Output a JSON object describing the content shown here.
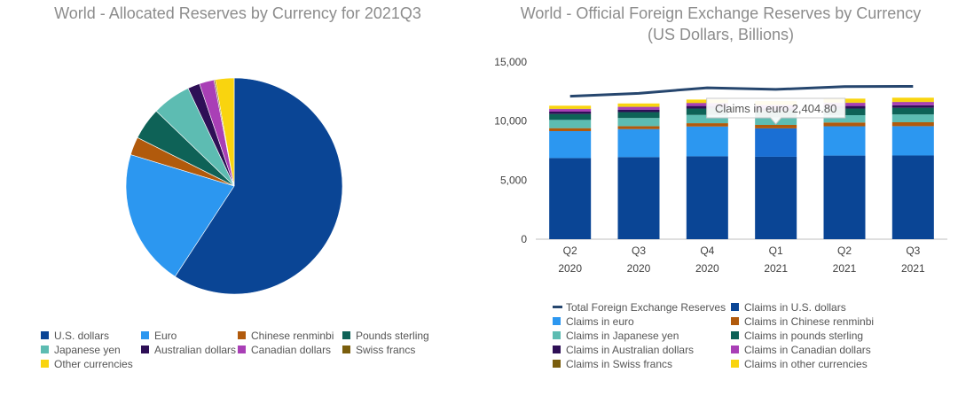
{
  "pie_title": "World - Allocated Reserves by Currency for 2021Q3",
  "bar_title_line1": "World - Official Foreign Exchange Reserves by Currency",
  "bar_title_line2": "(US Dollars, Billions)",
  "colors": {
    "usd": "#0a4595",
    "eur": "#2c97f0",
    "cny": "#b15a0c",
    "gbp": "#0e6257",
    "jpy": "#5dbcb2",
    "aud": "#2e0f56",
    "cad": "#a93fb6",
    "chf": "#7a5e0d",
    "other": "#f9d40f",
    "total": "#26466e"
  },
  "chart_data": [
    {
      "type": "pie",
      "title": "World - Allocated Reserves by Currency for 2021Q3",
      "legend_position": "bottom",
      "slices": [
        {
          "key": "usd",
          "label": "U.S. dollars",
          "value": 59.2
        },
        {
          "key": "eur",
          "label": "Euro",
          "value": 20.5
        },
        {
          "key": "cny",
          "label": "Chinese renminbi",
          "value": 2.7
        },
        {
          "key": "gbp",
          "label": "Pounds sterling",
          "value": 4.8
        },
        {
          "key": "jpy",
          "label": "Japanese yen",
          "value": 5.8
        },
        {
          "key": "aud",
          "label": "Australian dollars",
          "value": 1.8
        },
        {
          "key": "cad",
          "label": "Canadian dollars",
          "value": 2.2
        },
        {
          "key": "chf",
          "label": "Swiss francs",
          "value": 0.2
        },
        {
          "key": "other",
          "label": "Other currencies",
          "value": 2.8
        }
      ]
    },
    {
      "type": "bar",
      "stacked": true,
      "title": "World - Official Foreign Exchange Reserves by Currency",
      "subtitle": "(US Dollars, Billions)",
      "categories": [
        [
          "Q2",
          "2020"
        ],
        [
          "Q3",
          "2020"
        ],
        [
          "Q4",
          "2020"
        ],
        [
          "Q1",
          "2021"
        ],
        [
          "Q2",
          "2021"
        ],
        [
          "Q3",
          "2021"
        ]
      ],
      "ylim": [
        0,
        15000
      ],
      "yticks": [
        {
          "value": 0,
          "label": "0"
        },
        {
          "value": 5000,
          "label": "5,000"
        },
        {
          "value": 10000,
          "label": "10,000"
        },
        {
          "value": 15000,
          "label": "15,000"
        }
      ],
      "series": [
        {
          "key": "usd",
          "name": "Claims in U.S. dollars",
          "values": [
            6870,
            6950,
            7020,
            6980,
            7080,
            7090
          ]
        },
        {
          "key": "eur",
          "name": "Claims in euro",
          "values": [
            2280,
            2370,
            2520,
            2404.8,
            2480,
            2480
          ]
        },
        {
          "key": "cny",
          "name": "Claims in Chinese renminbi",
          "values": [
            250,
            250,
            280,
            290,
            320,
            330
          ]
        },
        {
          "key": "jpy",
          "name": "Claims in Japanese yen",
          "values": [
            700,
            690,
            700,
            630,
            620,
            660
          ]
        },
        {
          "key": "gbp",
          "name": "Claims in pounds sterling",
          "values": [
            500,
            500,
            540,
            560,
            560,
            560
          ]
        },
        {
          "key": "aud",
          "name": "Claims in Australian dollars",
          "values": [
            200,
            210,
            220,
            220,
            220,
            220
          ]
        },
        {
          "key": "cad",
          "name": "Claims in Canadian dollars",
          "values": [
            220,
            230,
            240,
            270,
            260,
            270
          ]
        },
        {
          "key": "chf",
          "name": "Claims in Swiss francs",
          "values": [
            20,
            20,
            20,
            20,
            20,
            20
          ]
        },
        {
          "key": "other",
          "name": "Claims in other currencies",
          "values": [
            260,
            270,
            280,
            320,
            340,
            350
          ]
        }
      ],
      "line": {
        "key": "total",
        "name": "Total Foreign Exchange Reserves",
        "values": [
          12100,
          12350,
          12820,
          12680,
          12920,
          12940
        ]
      },
      "tooltip": {
        "text": "Claims in euro 2,404.80",
        "category_index": 3,
        "series_key": "eur"
      }
    }
  ],
  "pie_legend": [
    {
      "key": "usd",
      "label": "U.S. dollars"
    },
    {
      "key": "eur",
      "label": "Euro"
    },
    {
      "key": "cny",
      "label": "Chinese renminbi"
    },
    {
      "key": "gbp",
      "label": "Pounds sterling"
    },
    {
      "key": "jpy",
      "label": "Japanese yen"
    },
    {
      "key": "aud",
      "label": "Australian dollars"
    },
    {
      "key": "cad",
      "label": "Canadian dollars"
    },
    {
      "key": "chf",
      "label": "Swiss francs"
    },
    {
      "key": "other",
      "label": "Other currencies"
    }
  ],
  "bar_legend": [
    {
      "key": "total",
      "label": "Total Foreign Exchange Reserves",
      "line": true
    },
    {
      "key": "usd",
      "label": "Claims in U.S. dollars"
    },
    {
      "key": "eur",
      "label": "Claims in euro"
    },
    {
      "key": "cny",
      "label": "Claims in Chinese renminbi"
    },
    {
      "key": "jpy",
      "label": "Claims in Japanese yen"
    },
    {
      "key": "gbp",
      "label": "Claims in pounds sterling"
    },
    {
      "key": "aud",
      "label": "Claims in Australian dollars"
    },
    {
      "key": "cad",
      "label": "Claims in Canadian dollars"
    },
    {
      "key": "chf",
      "label": "Claims in Swiss francs"
    },
    {
      "key": "other",
      "label": "Claims in other currencies"
    }
  ]
}
